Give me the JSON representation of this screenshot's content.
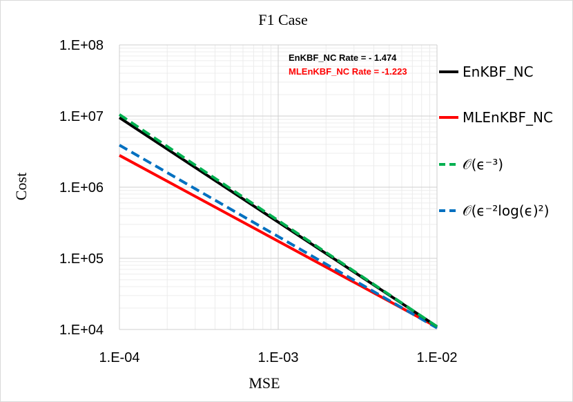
{
  "chart_data": {
    "type": "line",
    "title": "F1 Case",
    "xlabel": "MSE",
    "ylabel": "Cost",
    "xscale": "log",
    "yscale": "log",
    "xlim": [
      0.0001,
      0.01
    ],
    "ylim": [
      10000,
      100000000
    ],
    "x_ticks": [
      {
        "value": 0.0001,
        "label": "1.E-04"
      },
      {
        "value": 0.001,
        "label": "1.E-03"
      },
      {
        "value": 0.01,
        "label": "1.E-02"
      }
    ],
    "y_ticks": [
      {
        "value": 10000,
        "label": "1.E+04"
      },
      {
        "value": 100000,
        "label": "1.E+05"
      },
      {
        "value": 1000000,
        "label": "1.E+06"
      },
      {
        "value": 10000000,
        "label": "1.E+07"
      },
      {
        "value": 100000000,
        "label": "1.E+08"
      }
    ],
    "grid": true,
    "legend_position": "right",
    "series": [
      {
        "name": "EnKBF_NC",
        "legend_label": "EnKBF_NC",
        "color": "#000000",
        "style": "solid",
        "x": [
          0.0001,
          0.01
        ],
        "y": [
          9500000,
          11000
        ]
      },
      {
        "name": "MLEnKBF_NC",
        "legend_label": "MLEnKBF_NC",
        "color": "#ff0000",
        "style": "solid",
        "x": [
          0.0001,
          0.01
        ],
        "y": [
          2800000,
          10800
        ]
      },
      {
        "name": "O(eps^-3)",
        "legend_label": "𝒪(ϵ⁻³)",
        "color": "#00b050",
        "style": "dashed",
        "x": [
          0.0001,
          0.01
        ],
        "y": [
          10500000,
          11000
        ]
      },
      {
        "name": "O(eps^-2 log(eps)^2)",
        "legend_label": "𝒪(ϵ⁻²log(ϵ)²)",
        "color": "#0070c0",
        "style": "dashed",
        "x": [
          0.0001,
          0.01
        ],
        "y": [
          3900000,
          10500
        ]
      }
    ],
    "annotations": [
      {
        "text": "EnKBF_NC Rate = - 1.474",
        "color": "#000000"
      },
      {
        "text": "MLEnKBF_NC Rate = -1.223",
        "color": "#ff0000"
      }
    ]
  }
}
